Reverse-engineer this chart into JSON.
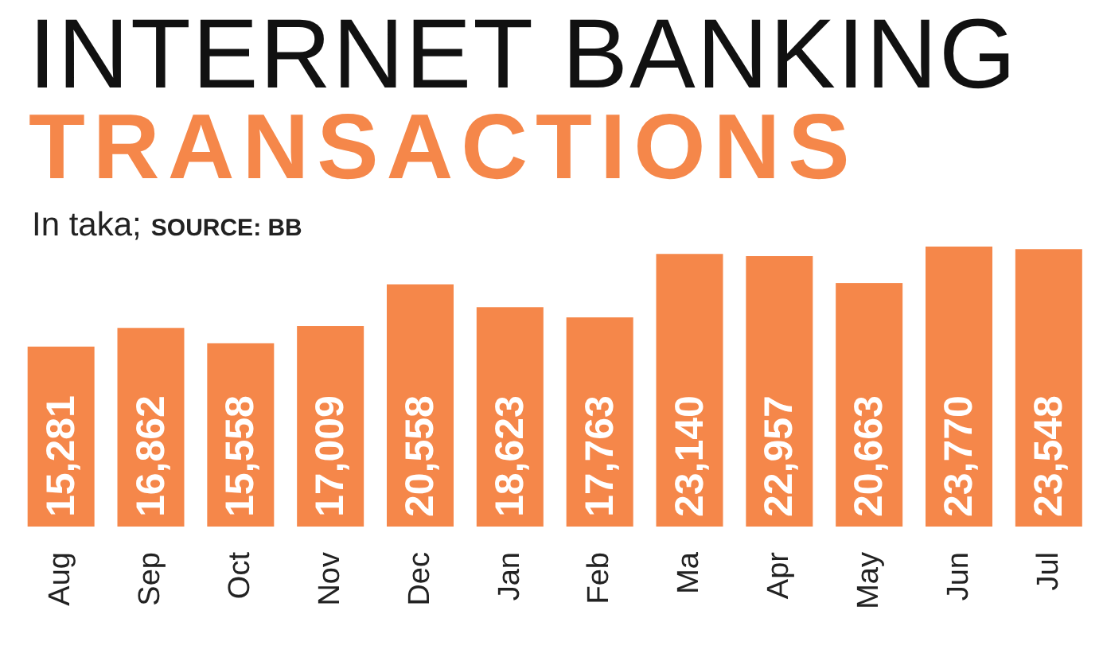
{
  "chart_data": {
    "type": "bar",
    "title": "INTERNET BANKING",
    "subtitle": "TRANSACTIONS",
    "annotations": [
      "In taka;",
      "SOURCE: BB"
    ],
    "categories": [
      "Aug",
      "Sep",
      "Oct",
      "Nov",
      "Dec",
      "Jan",
      "Feb",
      "Ma",
      "Apr",
      "May",
      "Jun",
      "Jul"
    ],
    "values": [
      15281,
      16862,
      15558,
      17009,
      20558,
      18623,
      17763,
      23140,
      22957,
      20663,
      23770,
      23548
    ],
    "value_labels": [
      "15,281",
      "16,862",
      "15,558",
      "17,009",
      "20,558",
      "18,623",
      "17,763",
      "23,140",
      "22,957",
      "20,663",
      "23,770",
      "23,548"
    ],
    "color": "#f5874a"
  }
}
